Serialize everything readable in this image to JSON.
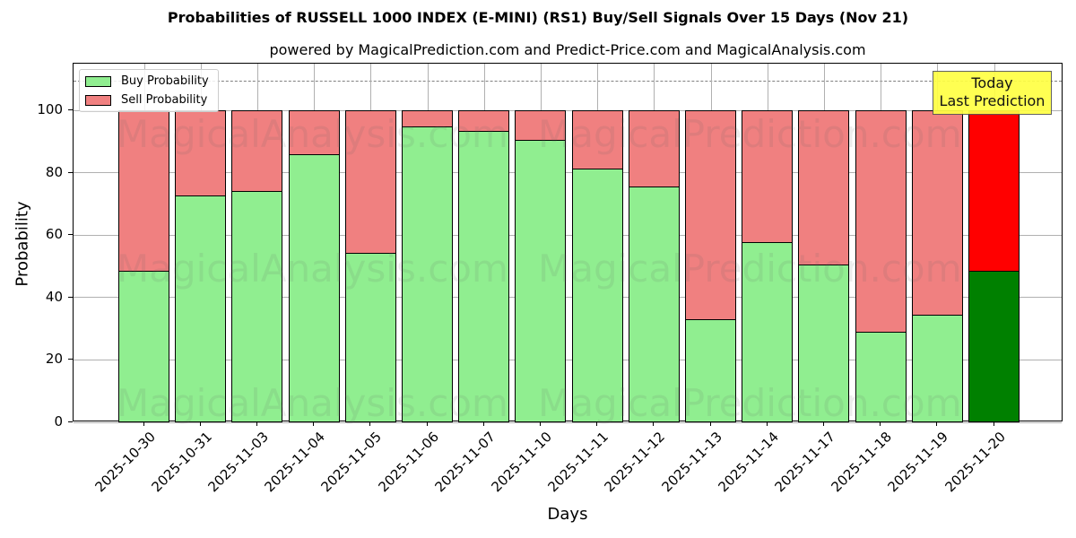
{
  "header": {
    "title": "Probabilities of RUSSELL 1000 INDEX (E-MINI) (RS1) Buy/Sell Signals Over 15 Days (Nov 21)",
    "subtitle": "powered by MagicalPrediction.com and Predict-Price.com and MagicalAnalysis.com"
  },
  "legend": {
    "buy_label": "Buy Probability",
    "sell_label": "Sell Probability"
  },
  "annotation": {
    "line1": "Today",
    "line2": "Last Prediction"
  },
  "watermarks": [
    "MagicalAnalysis.com",
    "MagicalPrediction.com"
  ],
  "colors": {
    "buy": "#90ee90",
    "sell": "#f08080",
    "today_buy": "#008000",
    "today_sell": "#ff0000",
    "annotation_bg": "#ffff44"
  },
  "chart_data": {
    "type": "bar",
    "stacked": true,
    "title": "Probabilities of RUSSELL 1000 INDEX (E-MINI) (RS1) Buy/Sell Signals Over 15 Days (Nov 21)",
    "subtitle": "powered by MagicalPrediction.com and Predict-Price.com and MagicalAnalysis.com",
    "xlabel": "Days",
    "ylabel": "Probability",
    "ylim": [
      0,
      115
    ],
    "yticks": [
      0,
      20,
      40,
      60,
      80,
      100
    ],
    "grid": true,
    "legend_position": "upper left",
    "reference_line": {
      "y": 110,
      "style": "dashed",
      "color": "#808080"
    },
    "categories": [
      "2025-10-30",
      "2025-10-31",
      "2025-11-03",
      "2025-11-04",
      "2025-11-05",
      "2025-11-06",
      "2025-11-07",
      "2025-11-10",
      "2025-11-11",
      "2025-11-12",
      "2025-11-13",
      "2025-11-14",
      "2025-11-17",
      "2025-11-18",
      "2025-11-19",
      "2025-11-20"
    ],
    "series": [
      {
        "name": "Buy Probability",
        "values": [
          48.5,
          72.8,
          74.3,
          86.1,
          54.3,
          94.8,
          93.4,
          90.5,
          81.5,
          75.7,
          33.2,
          57.8,
          50.6,
          28.9,
          34.4,
          48.6
        ]
      },
      {
        "name": "Sell Probability",
        "values": [
          51.5,
          27.2,
          25.7,
          13.9,
          45.7,
          5.2,
          6.6,
          9.5,
          18.5,
          24.3,
          66.8,
          42.2,
          49.4,
          71.1,
          65.6,
          51.4
        ]
      }
    ],
    "annotations": [
      {
        "text": "Today\nLast Prediction",
        "category": "2025-11-20"
      }
    ]
  }
}
